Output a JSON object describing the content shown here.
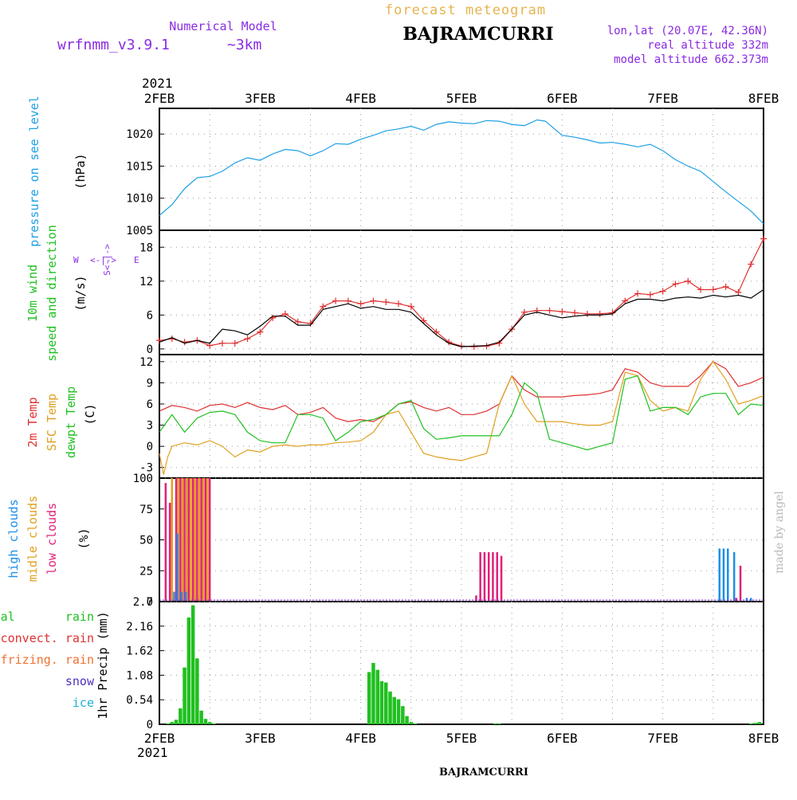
{
  "header": {
    "title": "forecast meteogram",
    "model_label": "Numerical Model",
    "model_name": "wrfnmm_v3.9.1",
    "resolution": "~3km",
    "station": "BAJRAMCURRI",
    "lonlat": "lon,lat (20.07E, 42.36N)",
    "real_altitude": "real altitude 332m",
    "model_altitude": "model altitude  662.373m",
    "credit": "made by angel",
    "footer_station": "BAJRAMCURRI"
  },
  "time_axis": {
    "year": "2021",
    "ticks": [
      "2FEB",
      "3FEB",
      "4FEB",
      "5FEB",
      "6FEB",
      "7FEB",
      "8FEB"
    ],
    "range_hours": [
      0,
      144
    ]
  },
  "colors": {
    "pressure": "#1ea0e6",
    "temp2m": "#e03030",
    "sfc": "#e0a020",
    "dewpt": "#20c020",
    "wind_label": "#20c020",
    "gust": "#e03030",
    "wind": "#000000",
    "high_cloud": "#1e90e6",
    "mid_cloud": "#e0a020",
    "low_cloud": "#e0207a",
    "total_rain": "#20c020",
    "convect_rain": "#e03030",
    "frizing_rain": "#f07030",
    "snow": "#5030c0",
    "ice": "#20b0d0",
    "purple": "#8a2be2"
  },
  "chart_data": [
    {
      "type": "line",
      "panel": "pressure",
      "ylabel": "pressure on see level",
      "unit": "(hPa)",
      "ylim": [
        1005,
        1024
      ],
      "yticks": [
        1005,
        1010,
        1015,
        1020
      ],
      "grid": true,
      "series": [
        {
          "color_key": "pressure",
          "x": [
            0,
            3,
            6,
            9,
            12,
            15,
            18,
            21,
            24,
            27,
            30,
            33,
            36,
            39,
            42,
            45,
            48,
            51,
            54,
            57,
            60,
            63,
            66,
            69,
            72,
            75,
            78,
            81,
            84,
            87,
            90,
            92,
            96,
            99,
            102,
            105,
            108,
            111,
            114,
            117,
            120,
            123,
            126,
            129,
            132,
            135,
            138,
            141,
            144
          ],
          "y": [
            1007.3,
            1009.0,
            1011.5,
            1013.2,
            1013.4,
            1014.2,
            1015.5,
            1016.3,
            1015.9,
            1016.9,
            1017.6,
            1017.4,
            1016.6,
            1017.4,
            1018.5,
            1018.4,
            1019.2,
            1019.8,
            1020.5,
            1020.8,
            1021.2,
            1020.6,
            1021.5,
            1021.9,
            1021.7,
            1021.6,
            1022.1,
            1022.0,
            1021.5,
            1021.3,
            1022.2,
            1022.0,
            1019.8,
            1019.5,
            1019.1,
            1018.6,
            1018.7,
            1018.4,
            1018.0,
            1018.4,
            1017.4,
            1016.0,
            1015.0,
            1014.2,
            1012.6,
            1011.0,
            1009.5,
            1008.0,
            1006.0
          ]
        }
      ]
    },
    {
      "type": "line",
      "panel": "wind",
      "ylabel_1": "10m wind",
      "ylabel_2": "speed and direction",
      "unit": "(m/s)",
      "compass_w": "W",
      "compass_s": "S<-|->",
      "compass_arrow": "<-|->",
      "compass_n": "N",
      "compass_e": "E",
      "ylim": [
        -1,
        21
      ],
      "yticks": [
        0,
        6,
        12,
        18
      ],
      "grid": true,
      "series": [
        {
          "color_key": "gust",
          "marker": "+",
          "x": [
            0,
            3,
            6,
            9,
            12,
            15,
            18,
            21,
            24,
            27,
            30,
            33,
            36,
            39,
            42,
            45,
            48,
            51,
            54,
            57,
            60,
            63,
            66,
            69,
            72,
            75,
            78,
            81,
            84,
            87,
            90,
            93,
            96,
            99,
            102,
            105,
            108,
            111,
            114,
            117,
            120,
            123,
            126,
            129,
            132,
            135,
            138,
            141,
            144
          ],
          "y": [
            1.5,
            1.8,
            1.2,
            1.5,
            0.6,
            1.0,
            1.0,
            1.8,
            3.0,
            5.5,
            6.2,
            4.8,
            4.5,
            7.5,
            8.5,
            8.5,
            8.0,
            8.5,
            8.3,
            8.0,
            7.5,
            5.0,
            3.0,
            1.2,
            0.5,
            0.4,
            0.5,
            1.0,
            3.5,
            6.5,
            6.8,
            6.8,
            6.6,
            6.4,
            6.2,
            6.2,
            6.4,
            8.5,
            9.8,
            9.6,
            10.2,
            11.5,
            12.0,
            10.5,
            10.5,
            11.0,
            10.0,
            15.0,
            19.5
          ]
        },
        {
          "color_key": "wind",
          "marker": "",
          "x": [
            0,
            3,
            6,
            9,
            12,
            15,
            18,
            21,
            24,
            27,
            30,
            33,
            36,
            39,
            42,
            45,
            48,
            51,
            54,
            57,
            60,
            63,
            66,
            69,
            72,
            75,
            78,
            81,
            84,
            87,
            90,
            93,
            96,
            99,
            102,
            105,
            108,
            111,
            114,
            117,
            120,
            123,
            126,
            129,
            132,
            135,
            138,
            141,
            144
          ],
          "y": [
            1.2,
            2.0,
            1.0,
            1.5,
            1.0,
            3.5,
            3.2,
            2.5,
            4.0,
            5.8,
            5.8,
            4.2,
            4.2,
            7.0,
            7.5,
            8.0,
            7.2,
            7.5,
            7.0,
            7.0,
            6.5,
            4.5,
            2.5,
            1.0,
            0.4,
            0.5,
            0.6,
            1.2,
            3.5,
            6.0,
            6.5,
            6.0,
            5.5,
            5.8,
            6.0,
            6.0,
            6.2,
            8.0,
            8.8,
            8.8,
            8.5,
            9.0,
            9.2,
            9.0,
            9.5,
            9.2,
            9.5,
            9.0,
            10.5
          ]
        }
      ]
    },
    {
      "type": "line",
      "panel": "temperature",
      "ylabel_1": "2m Temp",
      "ylabel_2": "SFC Temp",
      "ylabel_3": "dewpt Temp",
      "unit": "(C)",
      "ylim": [
        -4.5,
        13
      ],
      "yticks": [
        -3,
        0,
        3,
        6,
        9,
        12
      ],
      "grid": true,
      "series": [
        {
          "color_key": "temp2m",
          "x": [
            0,
            3,
            6,
            9,
            12,
            15,
            18,
            21,
            24,
            27,
            30,
            33,
            36,
            39,
            42,
            45,
            48,
            51,
            54,
            57,
            60,
            63,
            66,
            69,
            72,
            75,
            78,
            81,
            84,
            87,
            90,
            93,
            96,
            99,
            102,
            105,
            108,
            111,
            114,
            117,
            120,
            123,
            126,
            129,
            132,
            135,
            138,
            141,
            144
          ],
          "y": [
            5.0,
            5.8,
            5.5,
            5.0,
            5.8,
            6.0,
            5.5,
            6.2,
            5.5,
            5.2,
            5.8,
            4.5,
            4.8,
            5.5,
            4.0,
            3.5,
            3.8,
            3.5,
            4.5,
            6.0,
            6.3,
            5.5,
            5.0,
            5.5,
            4.5,
            4.5,
            5.0,
            6.0,
            10.0,
            8.0,
            7.0,
            7.0,
            7.0,
            7.2,
            7.3,
            7.5,
            8.0,
            11.0,
            10.5,
            9.0,
            8.5,
            8.5,
            8.5,
            10.0,
            12.0,
            11.0,
            8.5,
            9.0,
            9.8
          ]
        },
        {
          "color_key": "sfc",
          "x": [
            0,
            1,
            2,
            3,
            6,
            9,
            12,
            15,
            18,
            21,
            24,
            27,
            30,
            33,
            36,
            39,
            42,
            45,
            48,
            51,
            54,
            57,
            60,
            63,
            66,
            69,
            72,
            75,
            78,
            81,
            84,
            87,
            90,
            93,
            96,
            99,
            102,
            105,
            108,
            111,
            114,
            117,
            120,
            123,
            126,
            129,
            132,
            135,
            138,
            141,
            144
          ],
          "y": [
            -1.0,
            -4.0,
            -1.5,
            0.0,
            0.5,
            0.2,
            0.8,
            0.0,
            -1.5,
            -0.5,
            -0.8,
            0.0,
            0.2,
            0.0,
            0.2,
            0.2,
            0.5,
            0.6,
            0.8,
            2.0,
            4.5,
            5.0,
            2.0,
            -1.0,
            -1.5,
            -1.8,
            -2.0,
            -1.5,
            -1.0,
            6.0,
            10.0,
            6.0,
            3.5,
            3.5,
            3.5,
            3.2,
            3.0,
            3.0,
            3.5,
            10.5,
            10.0,
            6.5,
            5.0,
            5.5,
            5.0,
            9.5,
            12.0,
            9.5,
            6.0,
            6.5,
            7.2
          ]
        },
        {
          "color_key": "dewpt",
          "x": [
            0,
            3,
            6,
            9,
            12,
            15,
            18,
            21,
            24,
            27,
            30,
            33,
            36,
            39,
            42,
            45,
            48,
            51,
            54,
            57,
            60,
            63,
            66,
            69,
            72,
            75,
            78,
            81,
            84,
            87,
            90,
            93,
            96,
            99,
            102,
            105,
            108,
            111,
            114,
            117,
            120,
            123,
            126,
            129,
            132,
            135,
            138,
            141,
            144
          ],
          "y": [
            2.0,
            4.5,
            2.0,
            4.0,
            4.8,
            5.0,
            4.5,
            2.0,
            0.8,
            0.5,
            0.5,
            4.5,
            4.5,
            4.0,
            0.8,
            2.0,
            3.5,
            3.8,
            4.5,
            6.0,
            6.5,
            2.5,
            1.0,
            1.2,
            1.5,
            1.5,
            1.5,
            1.5,
            4.5,
            9.0,
            7.5,
            1.0,
            0.5,
            0.0,
            -0.5,
            0.0,
            0.5,
            9.5,
            10.0,
            5.0,
            5.5,
            5.5,
            4.5,
            7.0,
            7.5,
            7.5,
            4.5,
            6.0,
            5.8
          ]
        }
      ]
    },
    {
      "type": "bar",
      "panel": "clouds",
      "ylabel_1": "high  clouds",
      "ylabel_2": "midle clouds",
      "ylabel_3": "low   clouds",
      "unit": "(%)",
      "ylim": [
        0,
        100
      ],
      "yticks": [
        0,
        25,
        50,
        75,
        100
      ],
      "grid": true,
      "series": [
        {
          "color_key": "low_cloud",
          "x": [
            1.5,
            2.5,
            4.0,
            5.0,
            6.0,
            7.0,
            8.0,
            9.0,
            10.0,
            11.0,
            12.0,
            75.5,
            76.5,
            77.5,
            78.5,
            79.5,
            80.5,
            81.5,
            137.5,
            138.5
          ],
          "y": [
            96,
            80,
            100,
            100,
            100,
            100,
            100,
            100,
            100,
            100,
            100,
            5,
            40,
            40,
            40,
            40,
            40,
            37,
            3,
            29
          ]
        },
        {
          "color_key": "mid_cloud",
          "x": [
            3.0,
            4.5,
            5.5,
            6.5,
            7.5,
            8.5,
            9.5,
            10.5,
            11.5
          ],
          "y": [
            100,
            100,
            100,
            100,
            100,
            100,
            100,
            100,
            100
          ]
        },
        {
          "color_key": "high_cloud",
          "x": [
            3.5,
            4.3,
            5.3,
            6.3,
            133.5,
            134.5,
            135.5,
            137.0,
            140.0,
            141.0
          ],
          "y": [
            8,
            55,
            8,
            8,
            43,
            43,
            43,
            40,
            3,
            3
          ]
        }
      ]
    },
    {
      "type": "bar",
      "panel": "precip",
      "ylabel_1": "total       rain",
      "ylabel_2": "convect. rain",
      "ylabel_3": "frizing. rain",
      "ylabel_4": "snow",
      "ylabel_5": "ice",
      "unit": "1hr Precip (mm)",
      "ylim": [
        0,
        2.7
      ],
      "yticks": [
        0,
        0.54,
        1.08,
        1.62,
        2.16,
        2.7
      ],
      "grid": true,
      "series": [
        {
          "color_key": "total_rain",
          "x": [
            2,
            3,
            4,
            5,
            6,
            7,
            8,
            9,
            10,
            11,
            12,
            13,
            50,
            51,
            52,
            53,
            54,
            55,
            56,
            57,
            58,
            59,
            60,
            61,
            80,
            81,
            141,
            142,
            143
          ],
          "y": [
            0.02,
            0.05,
            0.1,
            0.35,
            1.25,
            2.35,
            2.62,
            1.45,
            0.3,
            0.12,
            0.05,
            0.02,
            1.15,
            1.35,
            1.2,
            0.95,
            0.92,
            0.72,
            0.6,
            0.55,
            0.4,
            0.18,
            0.05,
            0.02,
            0.02,
            0.02,
            0.02,
            0.03,
            0.05
          ]
        }
      ]
    }
  ]
}
